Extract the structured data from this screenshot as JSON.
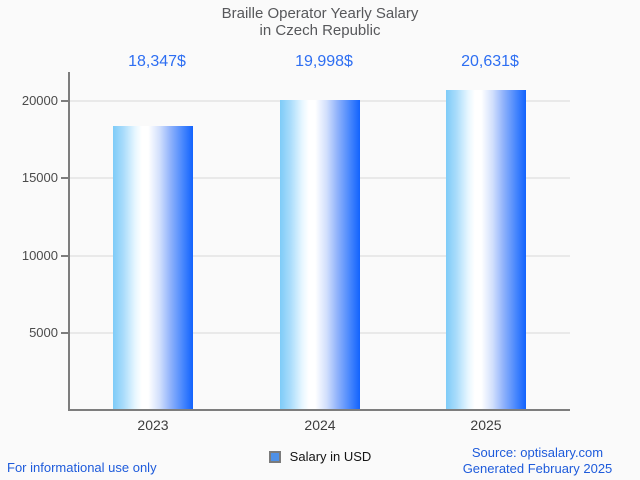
{
  "chart_data": {
    "type": "bar",
    "title": "Braille Operator Yearly Salary in Czech Republic",
    "title_lines": [
      "Braille Operator Yearly Salary",
      "in Czech Republic"
    ],
    "categories": [
      "2023",
      "2024",
      "2025"
    ],
    "values": [
      18347,
      19998,
      20631
    ],
    "value_labels": [
      "18,347$",
      "19,998$",
      "20,631$"
    ],
    "series_name": "Salary in USD",
    "xlabel": "",
    "ylabel": "",
    "yticks": [
      5000,
      10000,
      15000,
      20000
    ],
    "ytick_labels": [
      "5000",
      "10000",
      "15000",
      "20000"
    ],
    "ylim": [
      0,
      21800
    ],
    "grid": "horizontal",
    "legend_position": "bottom-center",
    "colors": {
      "bar_gradient_left": "#7ecbf8",
      "bar_gradient_mid": "#ffffff",
      "bar_gradient_right": "#1263fd",
      "value_label": "#2d6ef2",
      "legend_marker": "#4e90e6",
      "axis": "#7d7d7d",
      "gridline": "#e9e9e9",
      "title": "#57585b",
      "footer_text": "#1e5bdb",
      "background": "#fafafa"
    }
  },
  "legend": {
    "label": "Salary in USD"
  },
  "footer": {
    "disclaimer": "For informational use only",
    "source": "Source: optisalary.com",
    "generated": "Generated February 2025"
  }
}
